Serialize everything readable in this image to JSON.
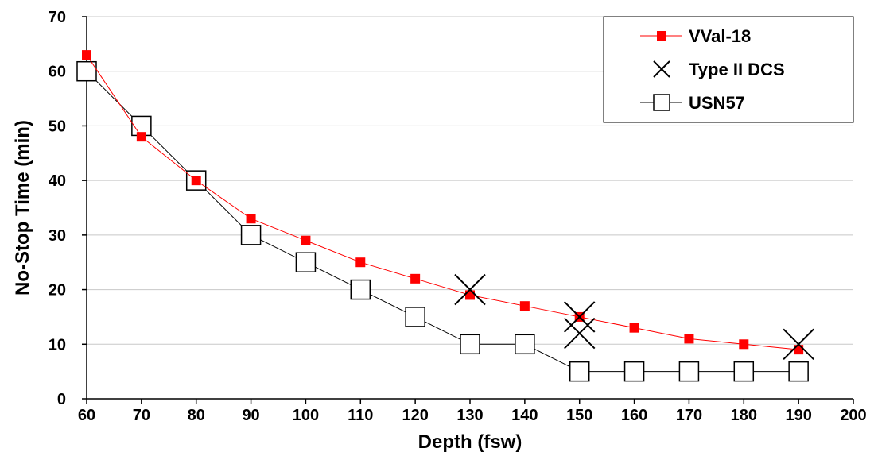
{
  "chart_data": {
    "type": "line",
    "title": "",
    "xlabel": "Depth (fsw)",
    "ylabel": "No-Stop Time (min)",
    "xlim": [
      60,
      200
    ],
    "ylim": [
      0,
      70
    ],
    "xticks": [
      60,
      70,
      80,
      90,
      100,
      110,
      120,
      130,
      140,
      150,
      160,
      170,
      180,
      190,
      200
    ],
    "yticks": [
      0,
      10,
      20,
      30,
      40,
      50,
      60,
      70
    ],
    "grid": {
      "horizontal": true,
      "vertical": false
    },
    "legend_position": "top-right",
    "series": [
      {
        "name": "VVal-18",
        "color": "#ff0000",
        "line_color": "#ff0000",
        "marker": "filled-square",
        "x": [
          60,
          70,
          80,
          90,
          100,
          110,
          120,
          130,
          140,
          150,
          160,
          170,
          180,
          190
        ],
        "y": [
          63,
          48,
          40,
          33,
          29,
          25,
          22,
          19,
          17,
          15,
          13,
          11,
          10,
          9
        ]
      },
      {
        "name": "Type II DCS",
        "color": "#000000",
        "marker": "x",
        "line": false,
        "x": [
          130,
          150,
          150,
          190
        ],
        "y": [
          20,
          15,
          12,
          10
        ]
      },
      {
        "name": "USN57",
        "color": "#000000",
        "line_color": "#000000",
        "marker": "open-square",
        "x": [
          60,
          70,
          80,
          90,
          100,
          110,
          120,
          130,
          140,
          150,
          160,
          170,
          180,
          190
        ],
        "y": [
          60,
          50,
          40,
          30,
          25,
          20,
          15,
          10,
          10,
          5,
          5,
          5,
          5,
          5
        ]
      }
    ]
  }
}
